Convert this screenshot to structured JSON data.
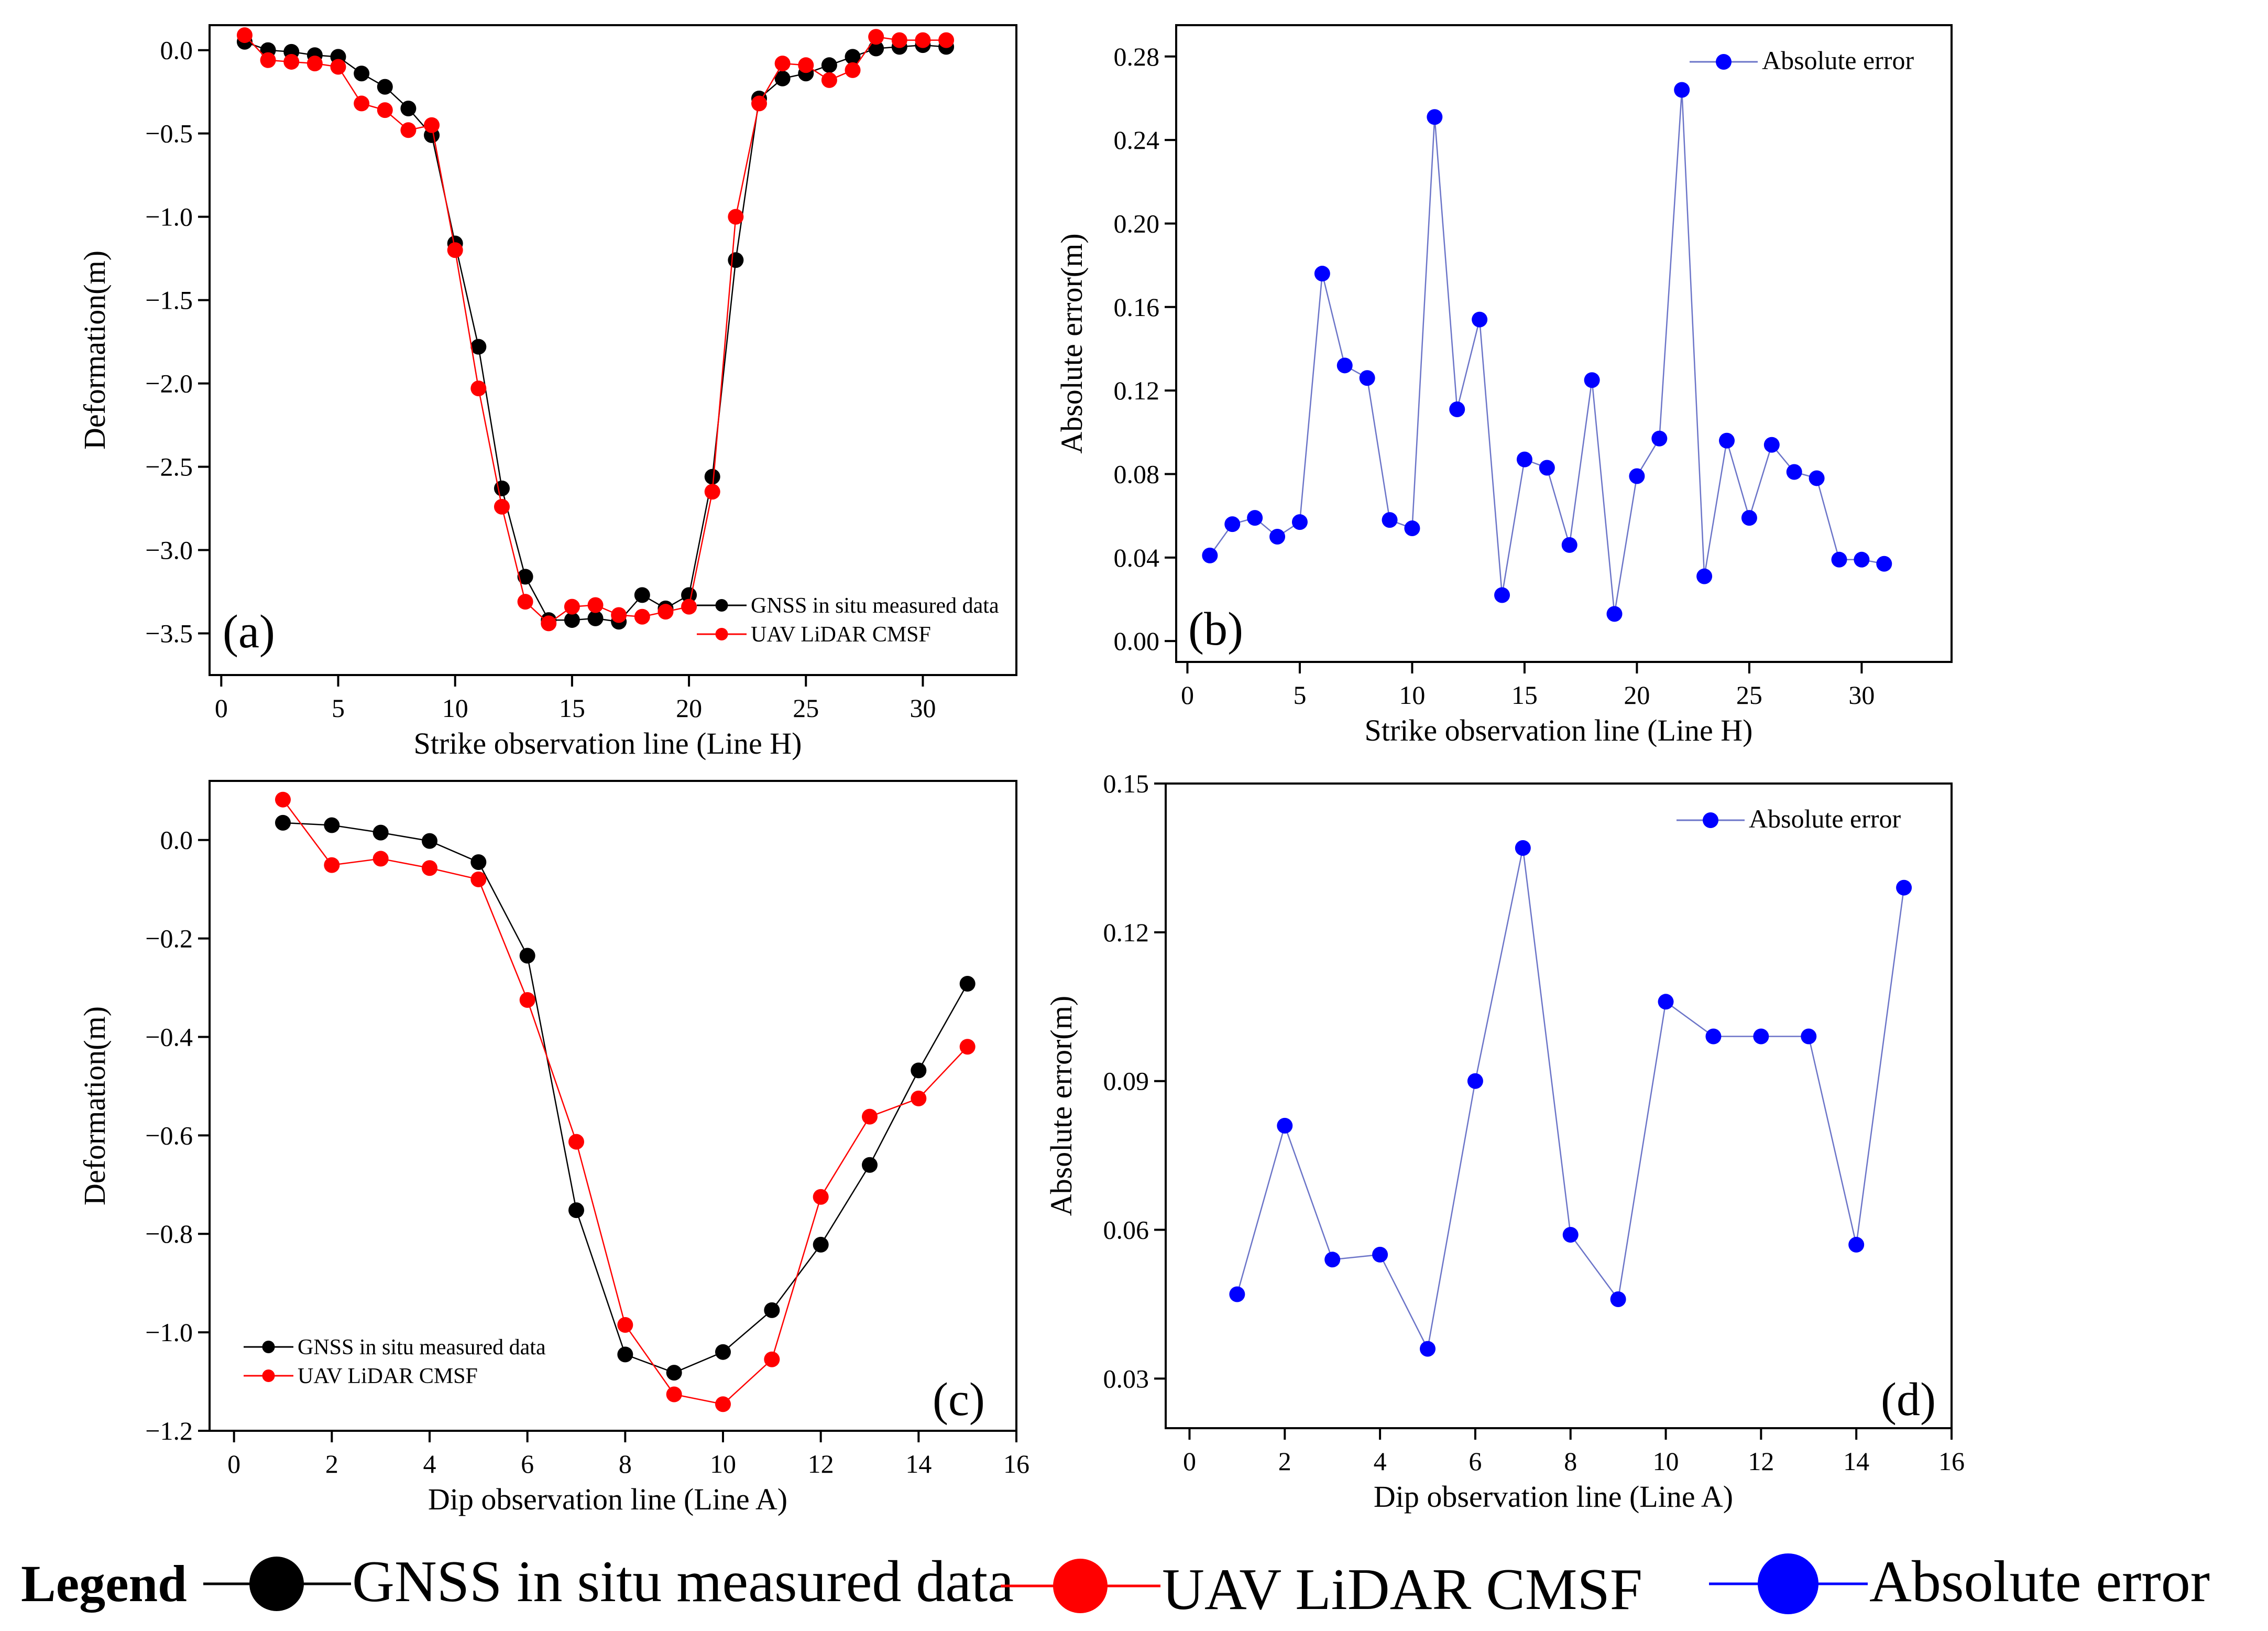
{
  "legend": {
    "title": "Legend",
    "items": [
      {
        "label": "GNSS in situ measured data",
        "color": "#000000"
      },
      {
        "label": "UAV LiDAR CMSF",
        "color": "#ff0000"
      },
      {
        "label": "Absolute error",
        "color": "#0000ff"
      }
    ]
  },
  "chart_data": [
    {
      "panel": "(a)",
      "type": "line",
      "xlabel": "Strike observation line (Line H)",
      "ylabel": "Deformation(m)",
      "xlim": [
        -0.5,
        34
      ],
      "ylim": [
        -3.75,
        0.15
      ],
      "xticks": [
        0,
        5,
        10,
        15,
        20,
        25,
        30
      ],
      "yticks": [
        0.0,
        -0.5,
        -1.0,
        -1.5,
        -2.0,
        -2.5,
        -3.0,
        -3.5
      ],
      "ytick_labels": [
        "0.0",
        "−0.5",
        "−1.0",
        "−1.5",
        "−2.0",
        "−2.5",
        "−3.0",
        "−3.5"
      ],
      "legend_position": "bottom-right",
      "x": [
        1,
        2,
        3,
        4,
        5,
        6,
        7,
        8,
        9,
        10,
        11,
        12,
        13,
        14,
        15,
        16,
        17,
        18,
        19,
        20,
        21,
        22,
        23,
        24,
        25,
        26,
        27,
        28,
        29,
        30,
        31
      ],
      "series": [
        {
          "name": "GNSS in situ measured data",
          "color": "#000000",
          "values": [
            0.05,
            0.0,
            -0.01,
            -0.03,
            -0.04,
            -0.14,
            -0.22,
            -0.35,
            -0.51,
            -1.16,
            -1.78,
            -2.63,
            -3.16,
            -3.42,
            -3.42,
            -3.41,
            -3.43,
            -3.27,
            -3.35,
            -3.27,
            -2.56,
            -1.26,
            -0.29,
            -0.17,
            -0.14,
            -0.09,
            -0.04,
            0.01,
            0.02,
            0.03,
            0.02
          ]
        },
        {
          "name": "UAV LiDAR CMSF",
          "color": "#ff0000",
          "values": [
            0.09,
            -0.06,
            -0.07,
            -0.08,
            -0.1,
            -0.32,
            -0.36,
            -0.48,
            -0.45,
            -1.2,
            -2.03,
            -2.74,
            -3.31,
            -3.44,
            -3.34,
            -3.33,
            -3.39,
            -3.4,
            -3.37,
            -3.34,
            -2.65,
            -1.0,
            -0.32,
            -0.08,
            -0.09,
            -0.18,
            -0.12,
            0.08,
            0.06,
            0.06,
            0.06
          ]
        }
      ]
    },
    {
      "panel": "(b)",
      "type": "line",
      "xlabel": "Strike observation line (Line H)",
      "ylabel": "Absolute error(m)",
      "xlim": [
        -0.5,
        34
      ],
      "ylim": [
        -0.01,
        0.295
      ],
      "xticks": [
        0,
        5,
        10,
        15,
        20,
        25,
        30
      ],
      "yticks": [
        0.0,
        0.04,
        0.08,
        0.12,
        0.16,
        0.2,
        0.24,
        0.28
      ],
      "ytick_labels": [
        "0.00",
        "0.04",
        "0.08",
        "0.12",
        "0.16",
        "0.20",
        "0.24",
        "0.28"
      ],
      "legend_position": "top-right",
      "x": [
        1,
        2,
        3,
        4,
        5,
        6,
        7,
        8,
        9,
        10,
        11,
        12,
        13,
        14,
        15,
        16,
        17,
        18,
        19,
        20,
        21,
        22,
        23,
        24,
        25,
        26,
        27,
        28,
        29,
        30,
        31
      ],
      "series": [
        {
          "name": "Absolute error",
          "color": "#0000ff",
          "values": [
            0.041,
            0.056,
            0.059,
            0.05,
            0.057,
            0.176,
            0.132,
            0.126,
            0.058,
            0.054,
            0.251,
            0.111,
            0.154,
            0.022,
            0.087,
            0.083,
            0.046,
            0.125,
            0.013,
            0.079,
            0.097,
            0.264,
            0.031,
            0.096,
            0.059,
            0.094,
            0.081,
            0.078,
            0.039,
            0.039,
            0.037
          ]
        }
      ]
    },
    {
      "panel": "(c)",
      "type": "line",
      "xlabel": "Dip observation line (Line A)",
      "ylabel": "Deformation(m)",
      "xlim": [
        -0.5,
        16
      ],
      "ylim": [
        -1.2,
        0.12
      ],
      "xticks": [
        0,
        2,
        4,
        6,
        8,
        10,
        12,
        14,
        16
      ],
      "yticks": [
        0.0,
        -0.2,
        -0.4,
        -0.6,
        -0.8,
        -1.0,
        -1.2
      ],
      "ytick_labels": [
        "0.0",
        "−0.2",
        "−0.4",
        "−0.6",
        "−0.8",
        "−1.0",
        "−1.2"
      ],
      "legend_position": "bottom-left",
      "x": [
        1,
        2,
        3,
        4,
        5,
        6,
        7,
        8,
        9,
        10,
        11,
        12,
        13,
        14,
        15
      ],
      "series": [
        {
          "name": "GNSS in situ measured data",
          "color": "#000000",
          "values": [
            0.035,
            0.03,
            0.015,
            -0.002,
            -0.045,
            -0.235,
            -0.752,
            -1.045,
            -1.082,
            -1.04,
            -0.955,
            -0.822,
            -0.66,
            -0.468,
            -0.292
          ]
        },
        {
          "name": "UAV LiDAR CMSF",
          "color": "#ff0000",
          "values": [
            0.082,
            -0.051,
            -0.038,
            -0.057,
            -0.08,
            -0.325,
            -0.613,
            -0.985,
            -1.126,
            -1.146,
            -1.055,
            -0.725,
            -0.562,
            -0.525,
            -0.42
          ]
        }
      ]
    },
    {
      "panel": "(d)",
      "type": "line",
      "xlabel": "Dip observation line (Line A)",
      "ylabel": "Absolute error(m)",
      "xlim": [
        -0.5,
        16
      ],
      "ylim": [
        0.02,
        0.15
      ],
      "xticks": [
        0,
        2,
        4,
        6,
        8,
        10,
        12,
        14,
        16
      ],
      "yticks": [
        0.03,
        0.06,
        0.09,
        0.12,
        0.15
      ],
      "ytick_labels": [
        "0.03",
        "0.06",
        "0.09",
        "0.12",
        "0.15"
      ],
      "legend_position": "top-right",
      "x": [
        1,
        2,
        3,
        4,
        5,
        6,
        7,
        8,
        9,
        10,
        11,
        12,
        13,
        14,
        15
      ],
      "series": [
        {
          "name": "Absolute error",
          "color": "#0000ff",
          "values": [
            0.047,
            0.081,
            0.054,
            0.055,
            0.036,
            0.09,
            0.137,
            0.059,
            0.046,
            0.106,
            0.099,
            0.099,
            0.099,
            0.057,
            0.129
          ]
        }
      ]
    }
  ]
}
